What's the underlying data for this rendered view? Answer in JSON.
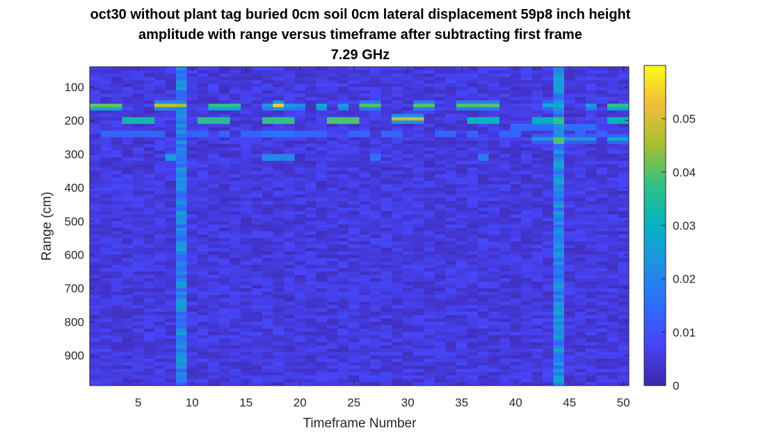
{
  "chart_data": {
    "type": "heatmap",
    "title": [
      "oct30 without plant tag buried 0cm soil 0cm lateral displacement 59p8 inch height",
      "amplitude with range versus timeframe after subtracting first frame",
      "7.29 GHz"
    ],
    "xlabel": "Timeframe Number",
    "ylabel": "Range (cm)",
    "xlim": [
      0.5,
      50.5
    ],
    "ylim": [
      40,
      990
    ],
    "y_reversed": true,
    "xticks": [
      5,
      10,
      15,
      20,
      25,
      30,
      35,
      40,
      45,
      50
    ],
    "yticks": [
      100,
      200,
      300,
      400,
      500,
      600,
      700,
      800,
      900
    ],
    "clim": [
      0,
      0.06
    ],
    "colorbar_ticks": [
      0,
      0.01,
      0.02,
      0.03,
      0.04,
      0.05
    ],
    "colormap": "parula",
    "grid": false,
    "background_level": 0.005,
    "bright_columns": [
      {
        "frame": 9,
        "level": 0.02
      },
      {
        "frame": 44,
        "level": 0.022
      }
    ],
    "hotspots": [
      {
        "frames": [
          1,
          2,
          3
        ],
        "range": 158,
        "value": 0.05
      },
      {
        "frames": [
          4,
          5,
          6
        ],
        "range": 200,
        "value": 0.045
      },
      {
        "frames": [
          7,
          8
        ],
        "range": 155,
        "value": 0.048
      },
      {
        "frames": [
          8
        ],
        "range": 310,
        "value": 0.035
      },
      {
        "frames": [
          9
        ],
        "range": 155,
        "value": 0.045
      },
      {
        "frames": [
          11,
          12,
          13
        ],
        "range": 200,
        "value": 0.05
      },
      {
        "frames": [
          12,
          13,
          14
        ],
        "range": 158,
        "value": 0.045
      },
      {
        "frames": [
          17,
          18,
          19
        ],
        "range": 200,
        "value": 0.052
      },
      {
        "frames": [
          18
        ],
        "range": 155,
        "value": 0.055
      },
      {
        "frames": [
          17,
          18,
          19
        ],
        "range": 158,
        "value": 0.03
      },
      {
        "frames": [
          17,
          18,
          19
        ],
        "range": 310,
        "value": 0.028
      },
      {
        "frames": [
          17,
          18,
          19
        ],
        "range": 240,
        "value": 0.022
      },
      {
        "frames": [
          20
        ],
        "range": 158,
        "value": 0.025
      },
      {
        "frames": [
          22
        ],
        "range": 158,
        "value": 0.035
      },
      {
        "frames": [
          23,
          24,
          25
        ],
        "range": 200,
        "value": 0.055
      },
      {
        "frames": [
          24
        ],
        "range": 158,
        "value": 0.03
      },
      {
        "frames": [
          26,
          27
        ],
        "range": 155,
        "value": 0.04
      },
      {
        "frames": [
          27
        ],
        "range": 310,
        "value": 0.022
      },
      {
        "frames": [
          29,
          30,
          31
        ],
        "range": 195,
        "value": 0.048
      },
      {
        "frames": [
          31,
          32
        ],
        "range": 155,
        "value": 0.04
      },
      {
        "frames": [
          35,
          36,
          37,
          38
        ],
        "range": 155,
        "value": 0.04
      },
      {
        "frames": [
          36,
          37,
          38
        ],
        "range": 200,
        "value": 0.042
      },
      {
        "frames": [
          37
        ],
        "range": 310,
        "value": 0.025
      },
      {
        "frames": [
          42,
          43
        ],
        "range": 200,
        "value": 0.04
      },
      {
        "frames": [
          43,
          44
        ],
        "range": 155,
        "value": 0.03
      },
      {
        "frames": [
          44
        ],
        "range": 200,
        "value": 0.052
      },
      {
        "frames": [
          44
        ],
        "range": 260,
        "value": 0.055
      },
      {
        "frames": [
          44
        ],
        "range": 240,
        "value": 0.03
      },
      {
        "frames": [
          40,
          41,
          42,
          43,
          44,
          45,
          46,
          47
        ],
        "range": 220,
        "value": 0.02
      },
      {
        "frames": [
          42,
          43,
          45,
          46,
          47
        ],
        "range": 255,
        "value": 0.025
      },
      {
        "frames": [
          47
        ],
        "range": 158,
        "value": 0.03
      },
      {
        "frames": [
          49,
          50
        ],
        "range": 158,
        "value": 0.045
      },
      {
        "frames": [
          49,
          50
        ],
        "range": 200,
        "value": 0.042
      },
      {
        "frames": [
          49,
          50
        ],
        "range": 255,
        "value": 0.03
      },
      {
        "frames": [
          2,
          3,
          4,
          5,
          6,
          7,
          10,
          11,
          13,
          15,
          16,
          20,
          21,
          22,
          25,
          26,
          28,
          29,
          33,
          34,
          36,
          39,
          40,
          46,
          48
        ],
        "range": 240,
        "value": 0.018
      }
    ]
  }
}
